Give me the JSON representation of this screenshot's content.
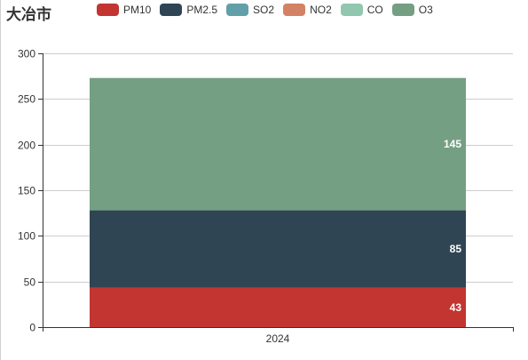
{
  "chart_data": {
    "type": "bar",
    "stacked": true,
    "title": "大冶市",
    "categories": [
      "2024"
    ],
    "series": [
      {
        "name": "PM10",
        "color": "#c23531",
        "values": [
          43
        ]
      },
      {
        "name": "PM2.5",
        "color": "#2f4554",
        "values": [
          85
        ]
      },
      {
        "name": "SO2",
        "color": "#61a0a8",
        "values": [
          0
        ]
      },
      {
        "name": "NO2",
        "color": "#d48265",
        "values": [
          0
        ]
      },
      {
        "name": "CO",
        "color": "#91c7ae",
        "values": [
          0
        ]
      },
      {
        "name": "O3",
        "color": "#749f83",
        "values": [
          145
        ]
      }
    ],
    "ylim": [
      0,
      300
    ],
    "yticks": [
      0,
      50,
      100,
      150,
      200,
      250,
      300
    ],
    "grid": true,
    "legend_position": "top"
  }
}
